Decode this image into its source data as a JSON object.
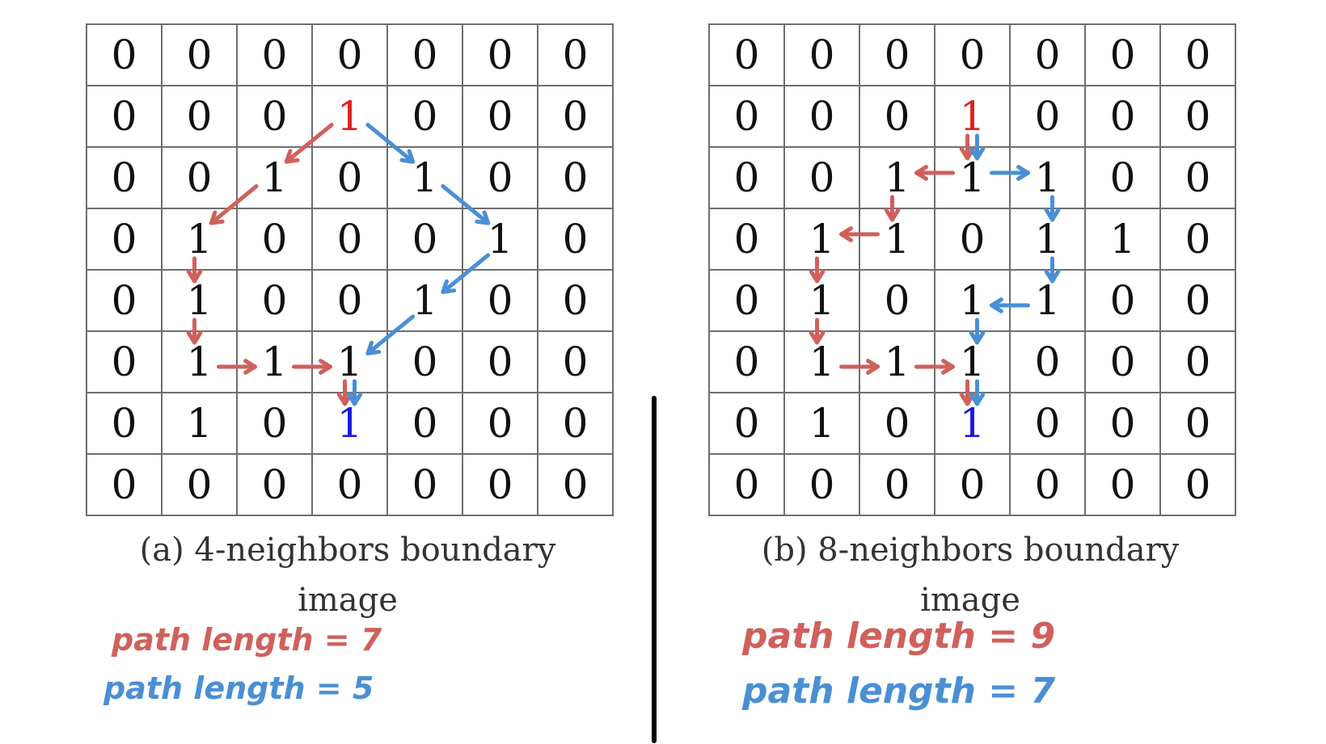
{
  "colors": {
    "red": "#d0605c",
    "blue": "#4a8fd4",
    "red_text": "#e02020",
    "blue_text": "#1a1ae0"
  },
  "panel_a": {
    "grid": [
      [
        "0",
        "0",
        "0",
        "0",
        "0",
        "0",
        "0"
      ],
      [
        "0",
        "0",
        "0",
        "1",
        "0",
        "0",
        "0"
      ],
      [
        "0",
        "0",
        "1",
        "0",
        "1",
        "0",
        "0"
      ],
      [
        "0",
        "1",
        "0",
        "0",
        "0",
        "1",
        "0"
      ],
      [
        "0",
        "1",
        "0",
        "0",
        "1",
        "0",
        "0"
      ],
      [
        "0",
        "1",
        "1",
        "1",
        "0",
        "0",
        "0"
      ],
      [
        "0",
        "1",
        "0",
        "1",
        "0",
        "0",
        "0"
      ],
      [
        "0",
        "0",
        "0",
        "0",
        "0",
        "0",
        "0"
      ]
    ],
    "start": [
      1,
      3
    ],
    "end": [
      6,
      3
    ],
    "caption_line1": "(a) 4-neighbors boundary",
    "caption_line2": "image",
    "red_note": "path length = 7",
    "blue_note": "path length = 5",
    "red_path": [
      [
        1,
        3
      ],
      [
        2,
        2
      ],
      [
        3,
        1
      ],
      [
        4,
        1
      ],
      [
        5,
        1
      ],
      [
        5,
        2
      ],
      [
        5,
        3
      ],
      [
        6,
        3
      ]
    ],
    "blue_path": [
      [
        1,
        3
      ],
      [
        2,
        4
      ],
      [
        3,
        5
      ],
      [
        4,
        4
      ],
      [
        5,
        3
      ],
      [
        6,
        3
      ]
    ]
  },
  "panel_b": {
    "grid": [
      [
        "0",
        "0",
        "0",
        "0",
        "0",
        "0",
        "0"
      ],
      [
        "0",
        "0",
        "0",
        "1",
        "0",
        "0",
        "0"
      ],
      [
        "0",
        "0",
        "1",
        "1",
        "1",
        "0",
        "0"
      ],
      [
        "0",
        "1",
        "1",
        "0",
        "1",
        "1",
        "0"
      ],
      [
        "0",
        "1",
        "0",
        "1",
        "1",
        "0",
        "0"
      ],
      [
        "0",
        "1",
        "1",
        "1",
        "0",
        "0",
        "0"
      ],
      [
        "0",
        "1",
        "0",
        "1",
        "0",
        "0",
        "0"
      ],
      [
        "0",
        "0",
        "0",
        "0",
        "0",
        "0",
        "0"
      ]
    ],
    "start": [
      1,
      3
    ],
    "end": [
      6,
      3
    ],
    "caption_line1": "(b) 8-neighbors boundary",
    "caption_line2": "image",
    "red_note": "path length = 9",
    "blue_note": "path length = 7",
    "red_path": [
      [
        1,
        3
      ],
      [
        2,
        3
      ],
      [
        2,
        2
      ],
      [
        3,
        2
      ],
      [
        3,
        1
      ],
      [
        4,
        1
      ],
      [
        5,
        1
      ],
      [
        5,
        2
      ],
      [
        5,
        3
      ],
      [
        6,
        3
      ]
    ],
    "blue_path": [
      [
        1,
        3
      ],
      [
        2,
        3
      ],
      [
        2,
        4
      ],
      [
        3,
        4
      ],
      [
        4,
        4
      ],
      [
        4,
        3
      ],
      [
        5,
        3
      ],
      [
        6,
        3
      ]
    ]
  }
}
